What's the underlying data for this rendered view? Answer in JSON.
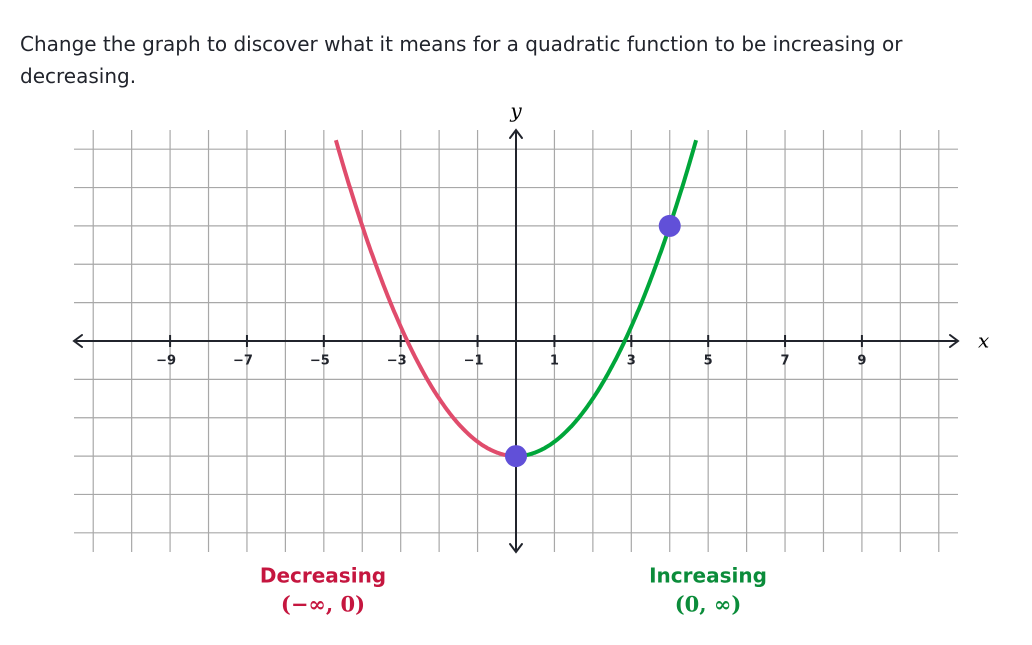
{
  "prompt": "Change the graph to discover what it means for a quadratic function to be increasing or decreasing.",
  "graph": {
    "x_label": "x",
    "y_label": "y",
    "xlim": [
      -11.5,
      11.5
    ],
    "ylim": [
      -5.5,
      5.5
    ],
    "grid_step": 1,
    "xticks": [
      {
        "value": -9,
        "label": "−9"
      },
      {
        "value": -7,
        "label": "−7"
      },
      {
        "value": -5,
        "label": "−5"
      },
      {
        "value": -3,
        "label": "−3"
      },
      {
        "value": -1,
        "label": "−1"
      },
      1,
      3,
      5,
      7,
      9
    ],
    "points": [
      {
        "x": 0,
        "y": -3
      },
      {
        "x": 4,
        "y": 3
      }
    ],
    "point_color": "#6150d8",
    "decreasing": {
      "label": "Decreasing",
      "interval": "(−∞, 0)",
      "color": "#c5163f",
      "curve_color": "#e04c6c"
    },
    "increasing": {
      "label": "Increasing",
      "interval": "(0, ∞)",
      "color": "#0b8c3a",
      "curve_color": "#00a63a"
    }
  }
}
